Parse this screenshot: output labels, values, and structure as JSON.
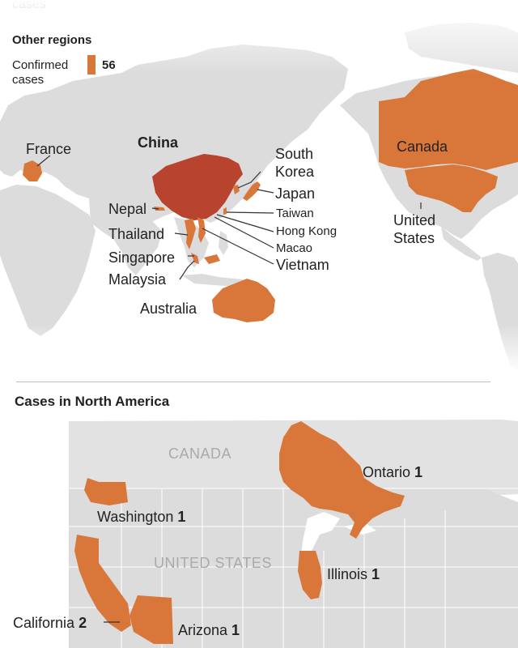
{
  "top_cut_text": "cases",
  "legend": {
    "title": "Other regions",
    "label_line1": "Confirmed",
    "label_line2": "cases",
    "value": "56",
    "swatch_color": "#d9773a"
  },
  "colors": {
    "land": "#dcdcdc",
    "land_light": "#e6e6e6",
    "ocean": "#ffffff",
    "affected": "#d9773a",
    "china": "#b8432e",
    "border": "#ffffff"
  },
  "world_labels": {
    "china": "China",
    "france": "France",
    "south_korea_1": "South",
    "south_korea_2": "Korea",
    "japan": "Japan",
    "taiwan": "Taiwan",
    "hong_kong": "Hong Kong",
    "macao": "Macao",
    "vietnam": "Vietnam",
    "nepal": "Nepal",
    "thailand": "Thailand",
    "singapore": "Singapore",
    "malaysia": "Malaysia",
    "australia": "Australia",
    "canada": "Canada",
    "united_1": "United",
    "states_1": "States"
  },
  "na_section": {
    "title": "Cases in North America",
    "country_canada": "CANADA",
    "country_us": "UNITED STATES",
    "regions": [
      {
        "name": "Ontario",
        "count": "1"
      },
      {
        "name": "Washington",
        "count": "1"
      },
      {
        "name": "Illinois",
        "count": "1"
      },
      {
        "name": "California",
        "count": "2"
      },
      {
        "name": "Arizona",
        "count": "1"
      }
    ]
  }
}
